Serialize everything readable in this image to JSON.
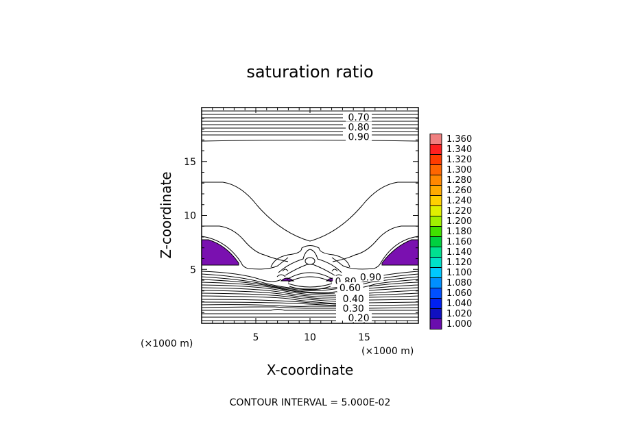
{
  "chart_data": {
    "type": "contour",
    "title": "saturation ratio",
    "xlabel": "X-coordinate",
    "ylabel": "Z-coordinate",
    "x_unit_label": "(×1000 m)",
    "z_unit_label": "(×1000 m)",
    "xlim": [
      0,
      20
    ],
    "ylim": [
      0,
      20
    ],
    "x_ticks": [
      5,
      10,
      15
    ],
    "y_ticks": [
      5,
      10,
      15
    ],
    "contour_interval_text": "CONTOUR INTERVAL = 5.000E-02",
    "contour_labels": [
      {
        "text": "0.70",
        "x": 14.5,
        "z": 19.1
      },
      {
        "text": "0.80",
        "x": 14.5,
        "z": 18.2
      },
      {
        "text": "0.90",
        "x": 14.5,
        "z": 17.3
      },
      {
        "text": "0.90",
        "x": 15.6,
        "z": 4.3
      },
      {
        "text": "0.80",
        "x": 13.3,
        "z": 3.9
      },
      {
        "text": "0.60",
        "x": 13.7,
        "z": 3.3
      },
      {
        "text": "0.40",
        "x": 14.0,
        "z": 2.3
      },
      {
        "text": "0.30",
        "x": 14.0,
        "z": 1.4
      },
      {
        "text": "0.20",
        "x": 14.5,
        "z": 0.5
      }
    ],
    "colorbar": {
      "levels": [
        "1.360",
        "1.340",
        "1.320",
        "1.300",
        "1.280",
        "1.260",
        "1.240",
        "1.220",
        "1.200",
        "1.180",
        "1.160",
        "1.140",
        "1.120",
        "1.100",
        "1.080",
        "1.060",
        "1.040",
        "1.020",
        "1.000"
      ],
      "colors": [
        "#f08080",
        "#ff2020",
        "#ff3c00",
        "#ff6600",
        "#ff8800",
        "#ffaa00",
        "#ffd000",
        "#e0f000",
        "#a0f000",
        "#40e000",
        "#00d040",
        "#00e090",
        "#00e0c8",
        "#00c8ff",
        "#0090ff",
        "#0050ff",
        "#0020f0",
        "#1010c0",
        "#6a0dad"
      ]
    },
    "filled_regions_color": "#7a10b0"
  }
}
